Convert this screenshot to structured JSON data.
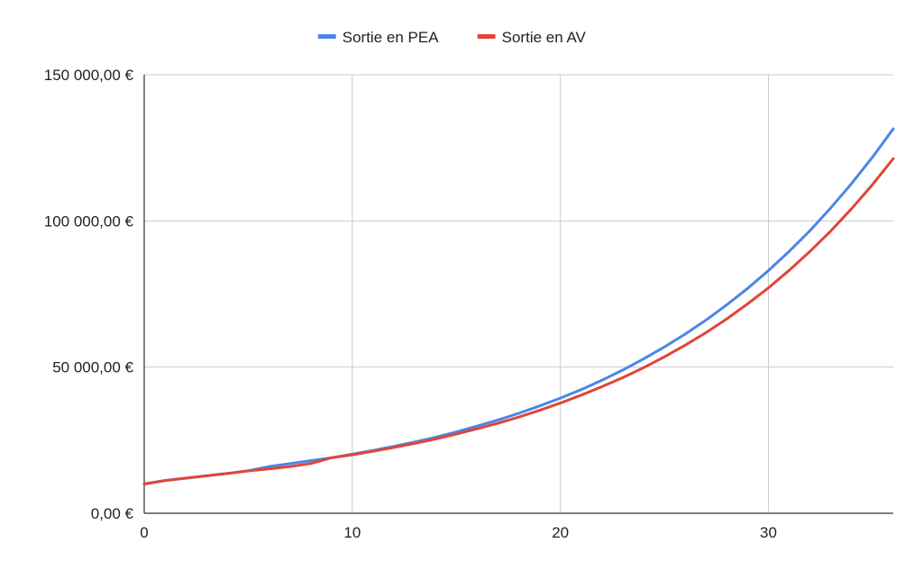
{
  "chart_data": {
    "type": "line",
    "title": "",
    "xlabel": "",
    "ylabel": "",
    "xlim": [
      0,
      36
    ],
    "ylim": [
      0,
      150000
    ],
    "x_ticks": [
      0,
      10,
      20,
      30
    ],
    "x_tick_labels": [
      "0",
      "10",
      "20",
      "30"
    ],
    "y_ticks": [
      0,
      50000,
      100000,
      150000
    ],
    "y_tick_labels": [
      "0,00 €",
      "50 000,00 €",
      "100 000,00 €",
      "150 000,00 €"
    ],
    "grid": true,
    "legend_position": "top",
    "x": [
      0,
      1,
      2,
      3,
      4,
      5,
      6,
      7,
      8,
      9,
      10,
      11,
      12,
      13,
      14,
      15,
      16,
      17,
      18,
      19,
      20,
      21,
      22,
      23,
      24,
      25,
      26,
      27,
      28,
      29,
      30,
      31,
      32,
      33,
      34,
      35,
      36
    ],
    "series": [
      {
        "name": "Sortie en PEA",
        "color": "#4a86e8",
        "values": [
          10000,
          11200,
          12000,
          12800,
          13600,
          14500,
          16000,
          17000,
          18000,
          19000,
          20200,
          21500,
          22900,
          24400,
          26000,
          27800,
          29800,
          31900,
          34200,
          36700,
          39400,
          42300,
          45500,
          49000,
          52800,
          56900,
          61300,
          66100,
          71300,
          76900,
          83000,
          89600,
          96700,
          104500,
          112800,
          121800,
          131500
        ]
      },
      {
        "name": "Sortie en AV",
        "color": "#e0453a",
        "values": [
          10000,
          11200,
          12000,
          12800,
          13600,
          14500,
          15200,
          16000,
          17000,
          19000,
          20000,
          21200,
          22500,
          23900,
          25400,
          27100,
          28900,
          30800,
          32900,
          35200,
          37700,
          40400,
          43300,
          46400,
          49800,
          53500,
          57500,
          61800,
          66500,
          71600,
          77100,
          83100,
          89600,
          96600,
          104200,
          112400,
          121300
        ]
      }
    ]
  }
}
